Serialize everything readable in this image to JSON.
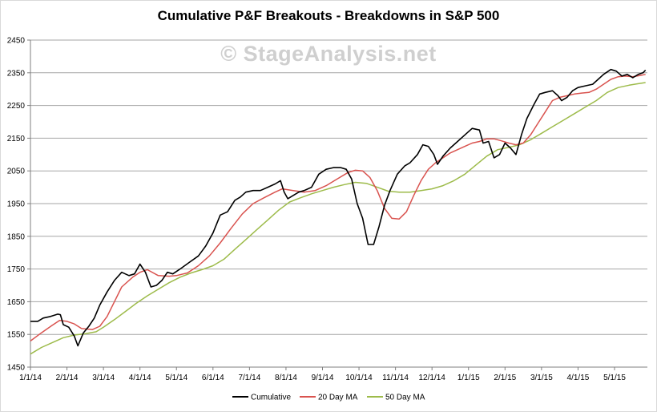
{
  "chart_data": {
    "type": "line",
    "title": "Cumulative P&F Breakouts - Breakdowns in S&P 500",
    "watermark": "© StageAnalysis.net",
    "xlabel": "",
    "ylabel": "",
    "ylim": [
      1450,
      2450
    ],
    "yticks": [
      1450,
      1550,
      1650,
      1750,
      1850,
      1950,
      2050,
      2150,
      2250,
      2350,
      2450
    ],
    "xlim": [
      0,
      16.9
    ],
    "xticks": [
      {
        "label": "1/1/14",
        "x": 0
      },
      {
        "label": "2/1/14",
        "x": 1
      },
      {
        "label": "3/1/14",
        "x": 2
      },
      {
        "label": "4/1/14",
        "x": 3
      },
      {
        "label": "5/1/14",
        "x": 4
      },
      {
        "label": "6/1/14",
        "x": 5
      },
      {
        "label": "7/1/14",
        "x": 6
      },
      {
        "label": "8/1/14",
        "x": 7
      },
      {
        "label": "9/1/14",
        "x": 8
      },
      {
        "label": "10/1/14",
        "x": 9
      },
      {
        "label": "11/1/14",
        "x": 10
      },
      {
        "label": "12/1/14",
        "x": 11
      },
      {
        "label": "1/1/15",
        "x": 12
      },
      {
        "label": "2/1/15",
        "x": 13
      },
      {
        "label": "3/1/15",
        "x": 14
      },
      {
        "label": "4/1/15",
        "x": 15
      },
      {
        "label": "5/1/15",
        "x": 16
      }
    ],
    "grid": "horizontal",
    "legend_position": "bottom",
    "series": [
      {
        "name": "Cumulative",
        "color": "#000000",
        "points": [
          [
            0,
            1590
          ],
          [
            0.2,
            1590
          ],
          [
            0.35,
            1600
          ],
          [
            0.55,
            1605
          ],
          [
            0.75,
            1612
          ],
          [
            0.82,
            1610
          ],
          [
            0.9,
            1580
          ],
          [
            1.05,
            1572
          ],
          [
            1.2,
            1545
          ],
          [
            1.3,
            1515
          ],
          [
            1.45,
            1555
          ],
          [
            1.6,
            1575
          ],
          [
            1.75,
            1600
          ],
          [
            1.9,
            1640
          ],
          [
            2.1,
            1680
          ],
          [
            2.3,
            1715
          ],
          [
            2.5,
            1740
          ],
          [
            2.7,
            1730
          ],
          [
            2.85,
            1735
          ],
          [
            3.0,
            1765
          ],
          [
            3.15,
            1740
          ],
          [
            3.3,
            1695
          ],
          [
            3.45,
            1700
          ],
          [
            3.6,
            1715
          ],
          [
            3.75,
            1740
          ],
          [
            3.9,
            1735
          ],
          [
            4.1,
            1750
          ],
          [
            4.35,
            1770
          ],
          [
            4.6,
            1790
          ],
          [
            4.8,
            1820
          ],
          [
            5.0,
            1860
          ],
          [
            5.2,
            1915
          ],
          [
            5.4,
            1925
          ],
          [
            5.6,
            1960
          ],
          [
            5.75,
            1970
          ],
          [
            5.9,
            1985
          ],
          [
            6.1,
            1990
          ],
          [
            6.3,
            1990
          ],
          [
            6.5,
            2000
          ],
          [
            6.7,
            2010
          ],
          [
            6.85,
            2020
          ],
          [
            6.95,
            1985
          ],
          [
            7.05,
            1965
          ],
          [
            7.2,
            1975
          ],
          [
            7.35,
            1985
          ],
          [
            7.5,
            1990
          ],
          [
            7.7,
            2000
          ],
          [
            7.9,
            2040
          ],
          [
            8.1,
            2055
          ],
          [
            8.3,
            2060
          ],
          [
            8.5,
            2060
          ],
          [
            8.65,
            2055
          ],
          [
            8.8,
            2025
          ],
          [
            8.95,
            1950
          ],
          [
            9.1,
            1905
          ],
          [
            9.25,
            1825
          ],
          [
            9.4,
            1825
          ],
          [
            9.55,
            1880
          ],
          [
            9.7,
            1945
          ],
          [
            9.85,
            1990
          ],
          [
            10.05,
            2040
          ],
          [
            10.25,
            2065
          ],
          [
            10.4,
            2075
          ],
          [
            10.6,
            2100
          ],
          [
            10.75,
            2130
          ],
          [
            10.9,
            2125
          ],
          [
            11.05,
            2100
          ],
          [
            11.15,
            2070
          ],
          [
            11.3,
            2095
          ],
          [
            11.5,
            2120
          ],
          [
            11.7,
            2140
          ],
          [
            11.9,
            2160
          ],
          [
            12.1,
            2180
          ],
          [
            12.3,
            2175
          ],
          [
            12.4,
            2135
          ],
          [
            12.55,
            2140
          ],
          [
            12.7,
            2090
          ],
          [
            12.85,
            2100
          ],
          [
            13.0,
            2135
          ],
          [
            13.15,
            2120
          ],
          [
            13.3,
            2100
          ],
          [
            13.45,
            2160
          ],
          [
            13.6,
            2210
          ],
          [
            13.8,
            2255
          ],
          [
            13.95,
            2285
          ],
          [
            14.1,
            2290
          ],
          [
            14.3,
            2295
          ],
          [
            14.45,
            2280
          ],
          [
            14.55,
            2265
          ],
          [
            14.7,
            2275
          ],
          [
            14.85,
            2295
          ],
          [
            15.0,
            2305
          ],
          [
            15.2,
            2310
          ],
          [
            15.4,
            2315
          ],
          [
            15.55,
            2330
          ],
          [
            15.7,
            2345
          ],
          [
            15.9,
            2360
          ],
          [
            16.05,
            2355
          ],
          [
            16.2,
            2340
          ],
          [
            16.35,
            2345
          ],
          [
            16.5,
            2335
          ],
          [
            16.65,
            2345
          ],
          [
            16.78,
            2350
          ],
          [
            16.85,
            2358
          ]
        ]
      },
      {
        "name": "20 Day MA",
        "color": "#d9534f",
        "points": [
          [
            0,
            1530
          ],
          [
            0.3,
            1555
          ],
          [
            0.6,
            1578
          ],
          [
            0.8,
            1593
          ],
          [
            1.0,
            1590
          ],
          [
            1.2,
            1582
          ],
          [
            1.4,
            1568
          ],
          [
            1.7,
            1565
          ],
          [
            1.9,
            1575
          ],
          [
            2.1,
            1605
          ],
          [
            2.3,
            1650
          ],
          [
            2.5,
            1695
          ],
          [
            2.8,
            1725
          ],
          [
            3.0,
            1740
          ],
          [
            3.2,
            1748
          ],
          [
            3.5,
            1730
          ],
          [
            3.8,
            1728
          ],
          [
            4.0,
            1730
          ],
          [
            4.3,
            1738
          ],
          [
            4.6,
            1760
          ],
          [
            4.9,
            1790
          ],
          [
            5.2,
            1830
          ],
          [
            5.5,
            1875
          ],
          [
            5.8,
            1918
          ],
          [
            6.1,
            1950
          ],
          [
            6.4,
            1968
          ],
          [
            6.7,
            1985
          ],
          [
            6.9,
            1995
          ],
          [
            7.2,
            1990
          ],
          [
            7.5,
            1985
          ],
          [
            7.8,
            1990
          ],
          [
            8.1,
            2005
          ],
          [
            8.4,
            2025
          ],
          [
            8.7,
            2045
          ],
          [
            8.9,
            2052
          ],
          [
            9.1,
            2050
          ],
          [
            9.3,
            2030
          ],
          [
            9.5,
            1990
          ],
          [
            9.7,
            1935
          ],
          [
            9.9,
            1905
          ],
          [
            10.1,
            1903
          ],
          [
            10.3,
            1925
          ],
          [
            10.5,
            1975
          ],
          [
            10.7,
            2020
          ],
          [
            10.9,
            2055
          ],
          [
            11.1,
            2075
          ],
          [
            11.3,
            2090
          ],
          [
            11.5,
            2105
          ],
          [
            11.7,
            2115
          ],
          [
            11.9,
            2125
          ],
          [
            12.1,
            2135
          ],
          [
            12.3,
            2140
          ],
          [
            12.5,
            2148
          ],
          [
            12.7,
            2148
          ],
          [
            12.9,
            2142
          ],
          [
            13.1,
            2135
          ],
          [
            13.3,
            2130
          ],
          [
            13.5,
            2135
          ],
          [
            13.7,
            2160
          ],
          [
            13.9,
            2195
          ],
          [
            14.1,
            2230
          ],
          [
            14.3,
            2265
          ],
          [
            14.5,
            2275
          ],
          [
            14.7,
            2280
          ],
          [
            14.9,
            2285
          ],
          [
            15.1,
            2288
          ],
          [
            15.3,
            2290
          ],
          [
            15.5,
            2300
          ],
          [
            15.7,
            2315
          ],
          [
            15.9,
            2330
          ],
          [
            16.1,
            2338
          ],
          [
            16.3,
            2340
          ],
          [
            16.5,
            2338
          ],
          [
            16.7,
            2342
          ],
          [
            16.85,
            2345
          ]
        ]
      },
      {
        "name": "50 Day MA",
        "color": "#9dbb4a",
        "points": [
          [
            0,
            1490
          ],
          [
            0.3,
            1510
          ],
          [
            0.6,
            1525
          ],
          [
            0.9,
            1540
          ],
          [
            1.2,
            1548
          ],
          [
            1.5,
            1552
          ],
          [
            1.8,
            1558
          ],
          [
            2.0,
            1572
          ],
          [
            2.3,
            1595
          ],
          [
            2.6,
            1620
          ],
          [
            2.9,
            1645
          ],
          [
            3.2,
            1668
          ],
          [
            3.5,
            1688
          ],
          [
            3.8,
            1708
          ],
          [
            4.1,
            1725
          ],
          [
            4.4,
            1738
          ],
          [
            4.7,
            1748
          ],
          [
            5.0,
            1760
          ],
          [
            5.3,
            1780
          ],
          [
            5.6,
            1810
          ],
          [
            5.9,
            1840
          ],
          [
            6.2,
            1870
          ],
          [
            6.5,
            1900
          ],
          [
            6.8,
            1930
          ],
          [
            7.1,
            1955
          ],
          [
            7.4,
            1968
          ],
          [
            7.7,
            1980
          ],
          [
            8.0,
            1990
          ],
          [
            8.3,
            2000
          ],
          [
            8.6,
            2008
          ],
          [
            8.9,
            2015
          ],
          [
            9.2,
            2012
          ],
          [
            9.5,
            2000
          ],
          [
            9.8,
            1988
          ],
          [
            10.1,
            1985
          ],
          [
            10.4,
            1985
          ],
          [
            10.7,
            1990
          ],
          [
            11.0,
            1995
          ],
          [
            11.3,
            2005
          ],
          [
            11.6,
            2020
          ],
          [
            11.9,
            2040
          ],
          [
            12.2,
            2068
          ],
          [
            12.5,
            2095
          ],
          [
            12.8,
            2115
          ],
          [
            13.1,
            2122
          ],
          [
            13.4,
            2130
          ],
          [
            13.7,
            2145
          ],
          [
            14.0,
            2165
          ],
          [
            14.3,
            2185
          ],
          [
            14.6,
            2205
          ],
          [
            14.9,
            2225
          ],
          [
            15.2,
            2245
          ],
          [
            15.5,
            2265
          ],
          [
            15.8,
            2290
          ],
          [
            16.1,
            2305
          ],
          [
            16.4,
            2312
          ],
          [
            16.6,
            2316
          ],
          [
            16.85,
            2320
          ]
        ]
      }
    ]
  }
}
